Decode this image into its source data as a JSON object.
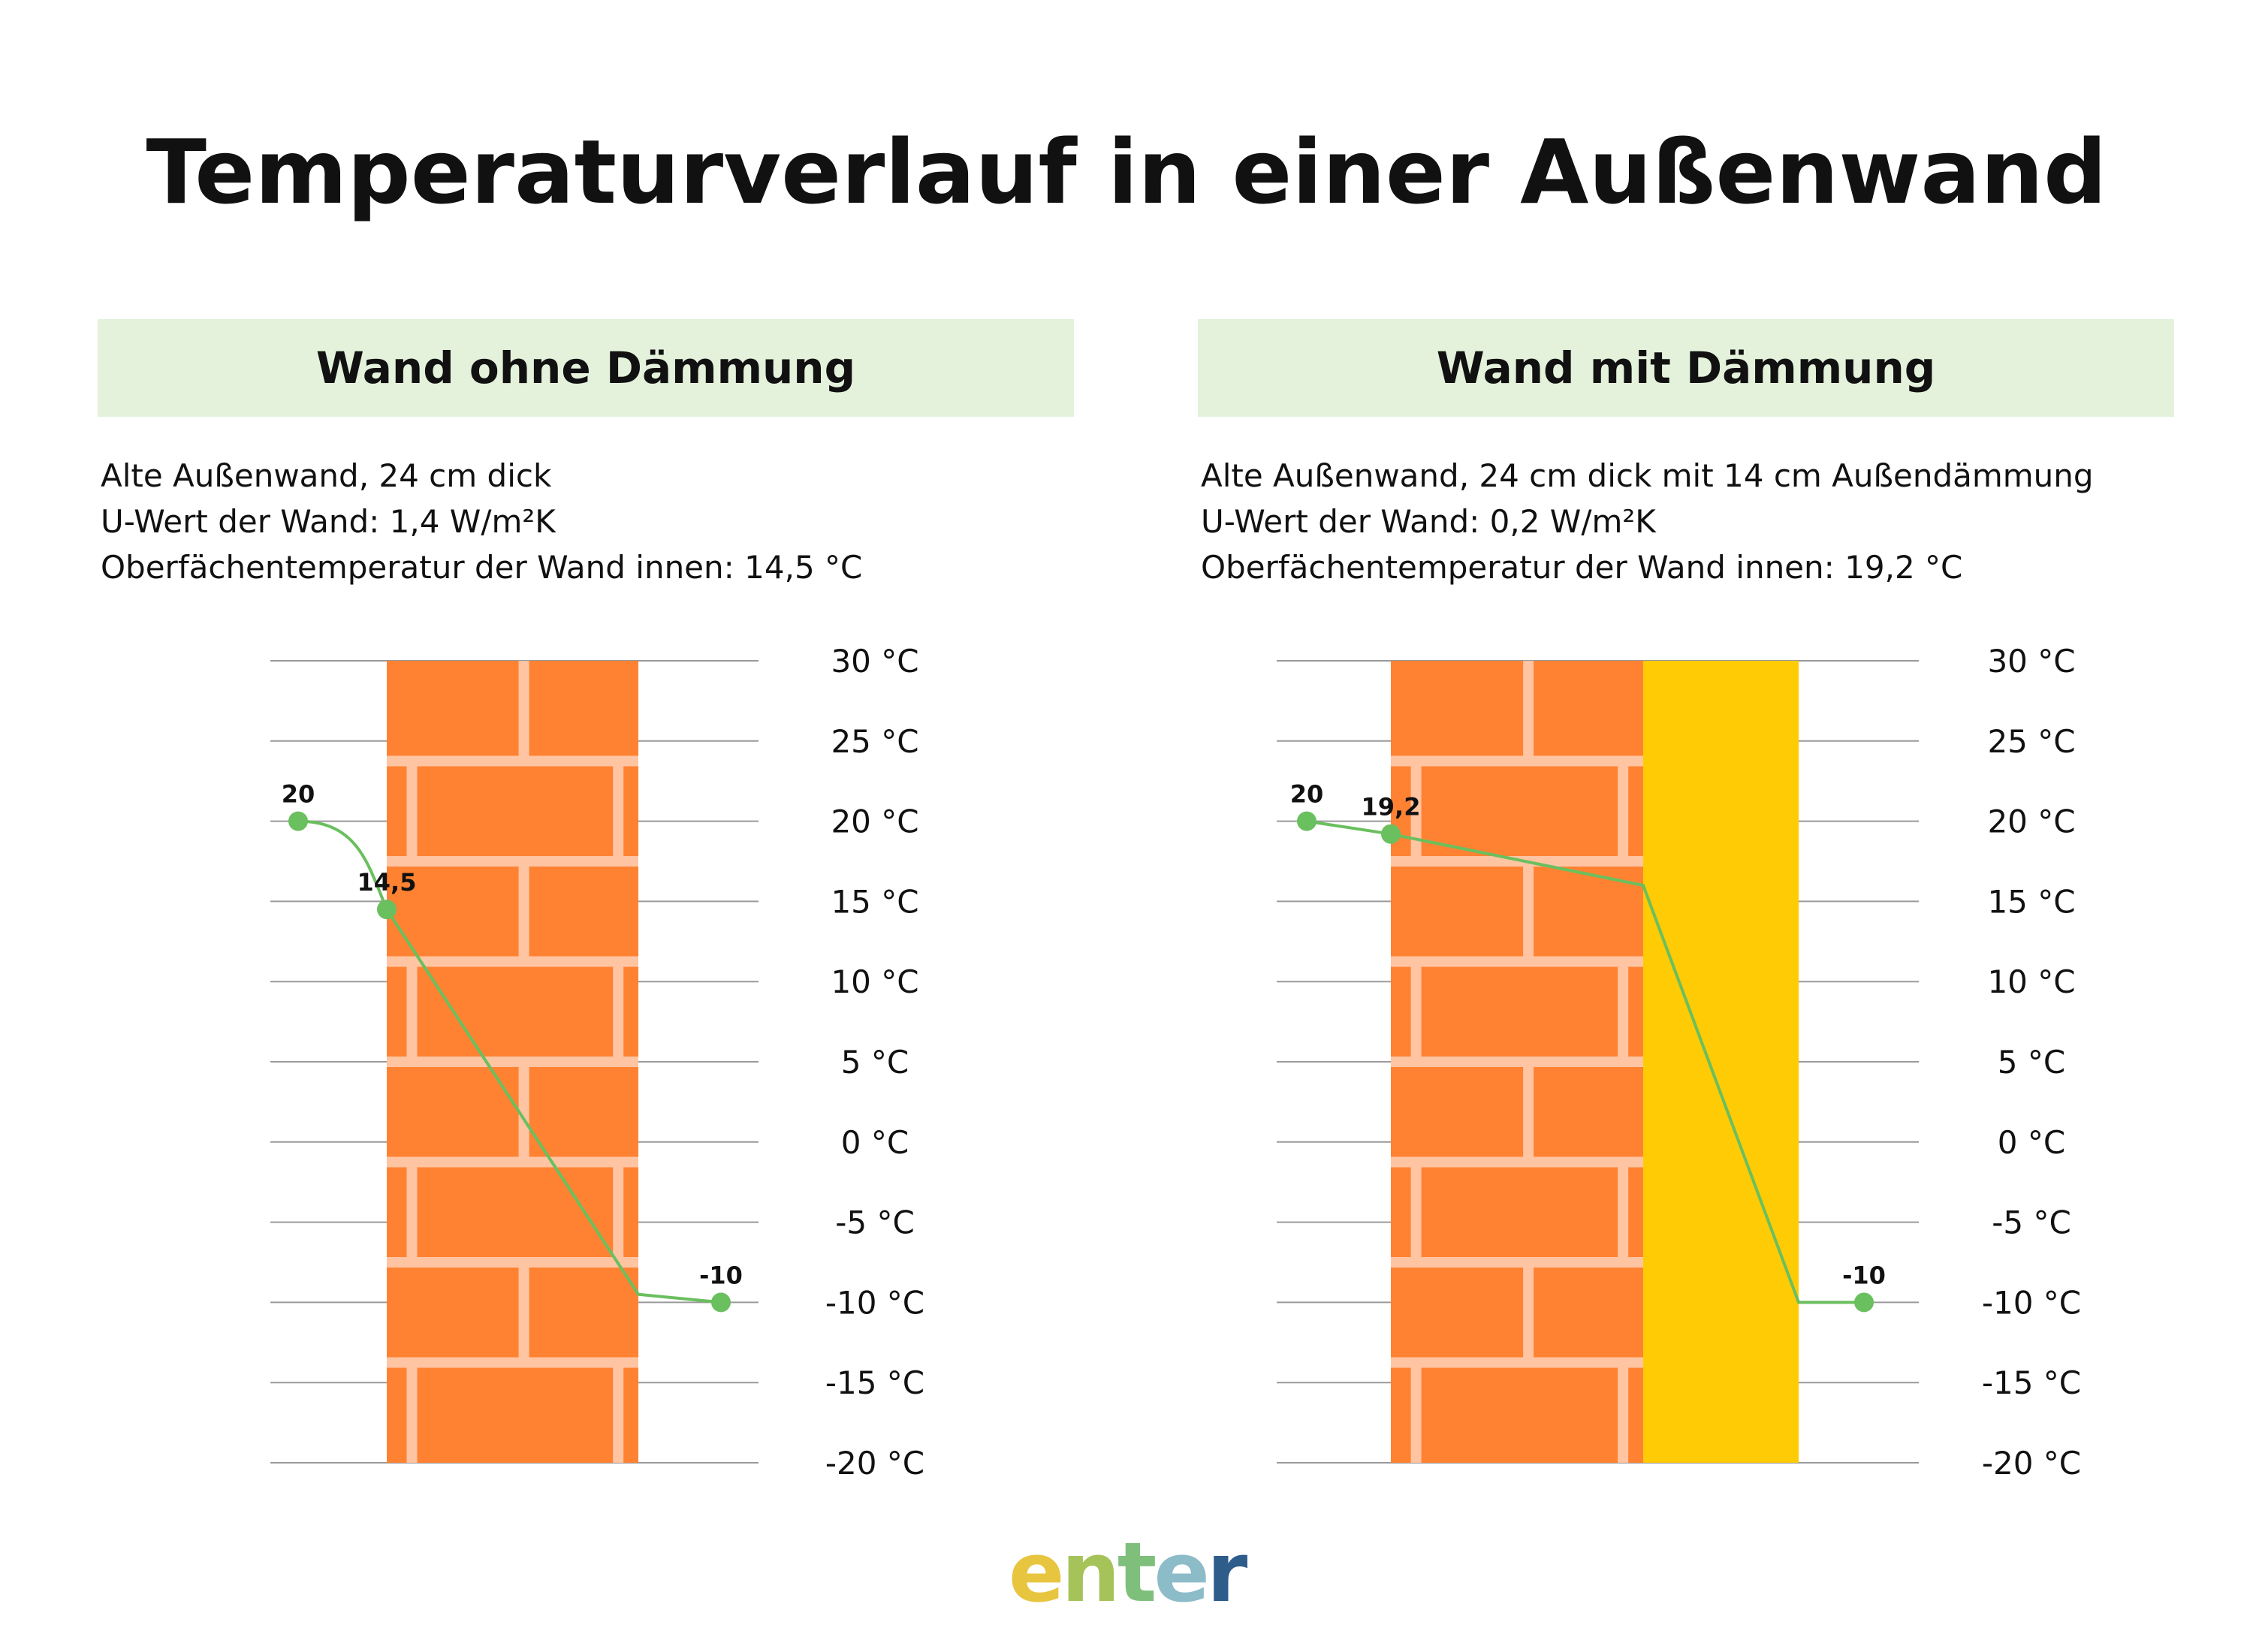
{
  "title": "Temperaturverlauf in einer Außenwand",
  "panels": [
    {
      "header": "Wand ohne Dämmung",
      "info": [
        "Alte Außenwand, 24 cm dick",
        "U-Wert der Wand: 1,4 W/m²K",
        "Oberfächentemperatur der Wand innen: 14,5 °C"
      ]
    },
    {
      "header": "Wand mit Dämmung",
      "info": [
        "Alte Außenwand, 24 cm dick mit 14 cm Außendämmung",
        "U-Wert der Wand: 0,2 W/m²K",
        "Oberfächentemperatur der Wand innen: 19,2 °C"
      ]
    }
  ],
  "chart_data": [
    {
      "type": "line",
      "ylim": [
        -20,
        30
      ],
      "yticks": [
        30,
        25,
        20,
        15,
        10,
        5,
        0,
        -5,
        -10,
        -15,
        -20
      ],
      "ytick_labels": [
        "30 °C",
        "25 °C",
        "20 °C",
        "15 °C",
        "10 °C",
        "5 °C",
        "0 °C",
        "-5 °C",
        "-10 °C",
        "-15 °C",
        "-20 °C"
      ],
      "layers": [
        "brick"
      ],
      "profile": [
        {
          "pos": "room",
          "value": 20,
          "label": "20",
          "marker": true
        },
        {
          "pos": "brick-inner",
          "value": 14.5,
          "label": "14,5",
          "marker": true
        },
        {
          "pos": "brick-outer",
          "value": -9.5,
          "marker": false
        },
        {
          "pos": "outside",
          "value": -10,
          "label": "-10",
          "marker": true
        }
      ],
      "colors": {
        "brick": "#ff8232",
        "mortar": "#ffc4a2",
        "line": "#6abf5e",
        "grid": "#9a9a9a"
      }
    },
    {
      "type": "line",
      "ylim": [
        -20,
        30
      ],
      "yticks": [
        30,
        25,
        20,
        15,
        10,
        5,
        0,
        -5,
        -10,
        -15,
        -20
      ],
      "ytick_labels": [
        "30 °C",
        "25 °C",
        "20 °C",
        "15 °C",
        "10 °C",
        "5 °C",
        "0 °C",
        "-5 °C",
        "-10 °C",
        "-15 °C",
        "-20 °C"
      ],
      "layers": [
        "brick",
        "insulation"
      ],
      "profile": [
        {
          "pos": "room",
          "value": 20,
          "label": "20",
          "marker": true
        },
        {
          "pos": "brick-inner",
          "value": 19.2,
          "label": "19,2",
          "marker": true
        },
        {
          "pos": "brick-outer",
          "value": 16,
          "marker": false
        },
        {
          "pos": "insulation-outer",
          "value": -10,
          "marker": false
        },
        {
          "pos": "outside",
          "value": -10,
          "label": "-10",
          "marker": true
        }
      ],
      "colors": {
        "brick": "#ff8232",
        "mortar": "#ffc4a2",
        "insulation": "#ffcb05",
        "line": "#6abf5e",
        "grid": "#9a9a9a"
      }
    }
  ],
  "logo": {
    "letters": [
      "e",
      "n",
      "t",
      "e",
      "r"
    ],
    "colors": [
      "#e8c53f",
      "#a6c35a",
      "#7fbf7c",
      "#8cbcc8",
      "#2e5d8c"
    ]
  }
}
